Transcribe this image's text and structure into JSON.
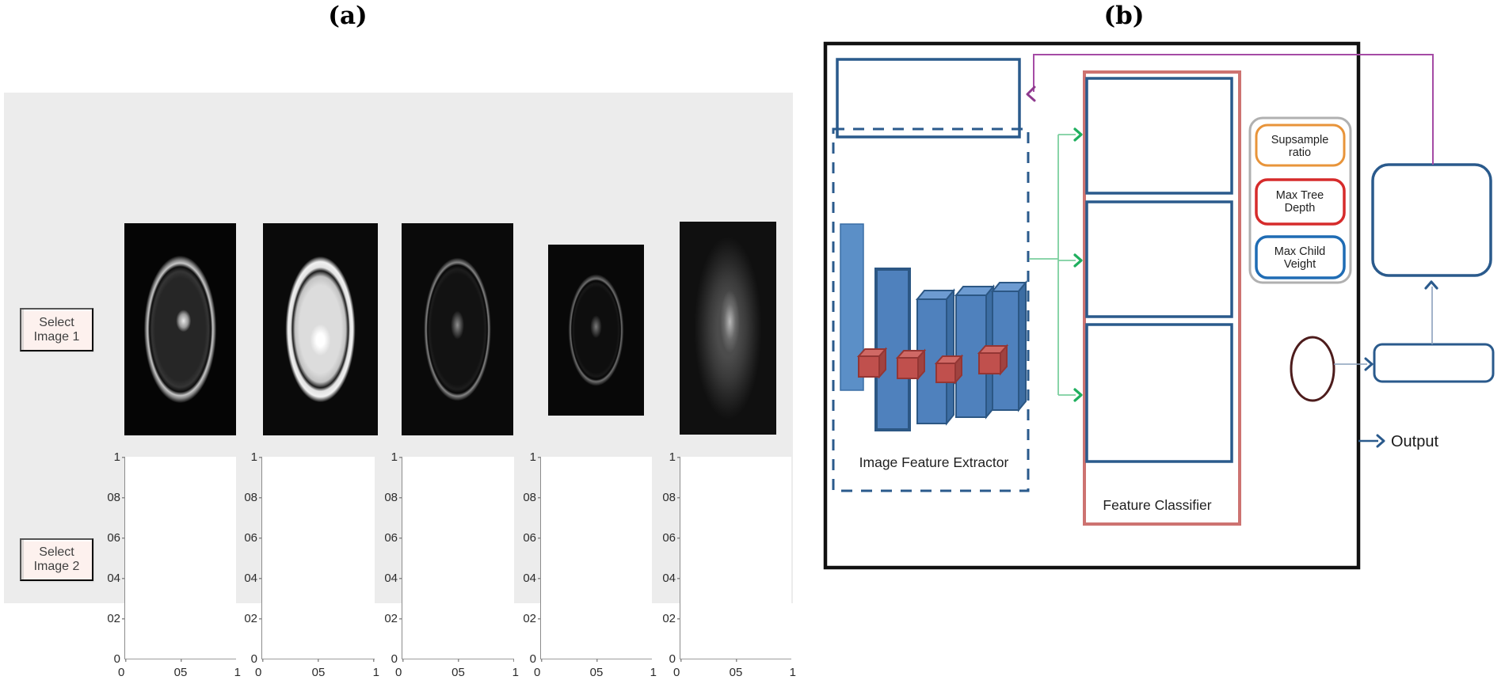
{
  "figure_labels": {
    "a": "(a)",
    "b": "(b)"
  },
  "panel_a": {
    "buttons": [
      {
        "line1": "Select",
        "line2": "Image 1"
      },
      {
        "line1": "Select",
        "line2": "Image 2"
      }
    ],
    "image_names": [
      "brain-mri-contrast",
      "brain-mri-bright",
      "brain-mri-edge-map",
      "brain-mri-edge-map-small",
      "brain-mri-blurred"
    ],
    "plot_axis": {
      "y_ticks": [
        "1",
        "08",
        "06",
        "04",
        "02",
        "0"
      ],
      "x_ticks": [
        "0",
        "05",
        "1"
      ]
    },
    "plot_count": 5
  },
  "panel_b": {
    "extractor_label": "Image Feature Extractor",
    "classifier_label": "Feature Classifier",
    "output_label": "Output",
    "params": [
      {
        "line1": "Supsample",
        "line2": "ratio",
        "border_color": "#e8943a"
      },
      {
        "line1": "Max Tree",
        "line2": "Depth",
        "border_color": "#d62b2b"
      },
      {
        "line1": "Max Child",
        "line2": "Veight",
        "border_color": "#1f6cb4"
      }
    ],
    "colors": {
      "box_blue": "#2a5a8c",
      "classifier_salmon": "#cd7371",
      "bar_blue": "#4f81bd",
      "cube_red": "#c0504d",
      "green_connector": "#1faf5e",
      "purple_connector": "#a54ba5",
      "ellipse_maroon": "#4d1c1c"
    }
  }
}
